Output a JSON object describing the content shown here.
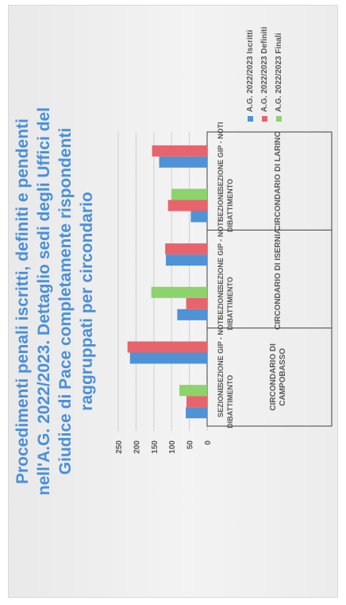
{
  "colors": {
    "title": "#4a90d9",
    "iscritti": "#4f93d6",
    "definiti": "#e8636b",
    "finali": "#8cd36b",
    "grid": "#cfcfcf",
    "axis_text": "#595959"
  },
  "chart_data": {
    "type": "bar",
    "title": "Procedimenti penali iscritti, definiti e pendenti\nnell'A.G. 2022/2023. Dettaglio sedi degli Uffici del\nGiudice di Pace completamente rispondenti\nraggruppati per circondario",
    "orientation": "vertical bars, slide rotated 90 degrees counter-clockwise",
    "ylim": [
      0,
      250
    ],
    "yticks": [
      0,
      50,
      100,
      150,
      200,
      250
    ],
    "grid": true,
    "legend_position": "right",
    "groups": [
      {
        "label": "CIRCONDARIO DI CAMPOBASSO",
        "categories": [
          {
            "label": "SEZIONE DIBATTIMENTO",
            "values": {
              "iscritti": 60,
              "definiti": 58,
              "finali": 78
            }
          },
          {
            "label": "SEZIONE GIP - NOTI",
            "values": {
              "iscritti": 217,
              "definiti": 224
            }
          }
        ]
      },
      {
        "label": "CIRCONDARIO DI ISERNIA",
        "categories": [
          {
            "label": "SEZIONE DIBATTIMENTO",
            "values": {
              "iscritti": 84,
              "definiti": 59,
              "finali": 157
            }
          },
          {
            "label": "SEZIONE GIP - NOTI",
            "values": {
              "iscritti": 116,
              "definiti": 118
            }
          }
        ]
      },
      {
        "label": "CIRCONDARIO DI LARINO",
        "categories": [
          {
            "label": "SEZIONE DIBATTIMENTO",
            "values": {
              "iscritti": 46,
              "definiti": 110,
              "finali": 100
            }
          },
          {
            "label": "SEZIONE GIP - NOTI",
            "values": {
              "iscritti": 135,
              "definiti": 155
            }
          }
        ]
      }
    ],
    "series": [
      {
        "key": "iscritti",
        "name": "A.G. 2022/2023 Iscritti"
      },
      {
        "key": "definiti",
        "name": "A.G. 2022/2023 Definiti"
      },
      {
        "key": "finali",
        "name": "A.G. 2022/2023 Finali"
      }
    ]
  }
}
